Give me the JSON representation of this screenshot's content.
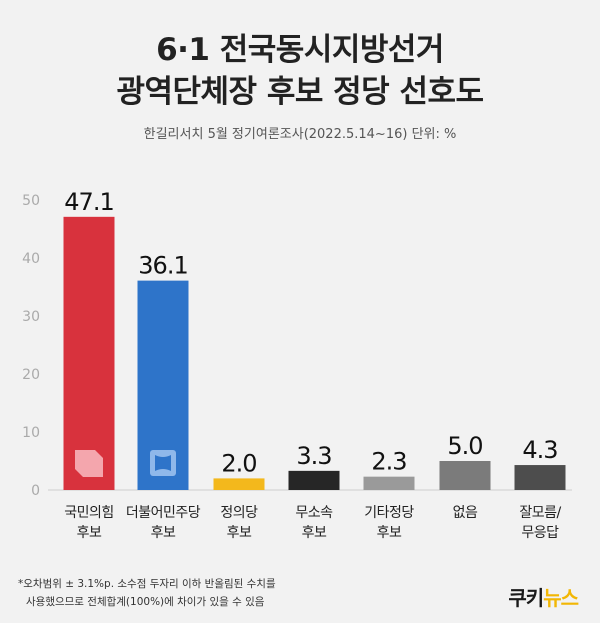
{
  "title_line1": "6·1 전국동시지방선거",
  "title_line2": "광역단체장 후보 정당 선호도",
  "subtitle": "한길리서치 5월 정기여론조사(2022.5.14~16) 단위: %",
  "footnote_line1": "*오차범위 ± 3.1%p. 소수점 두자리 이하 반올림된 수치를",
  "footnote_line2": "사용했으므로 전체합계(100%)에 차이가 있을 수 있음",
  "logo": {
    "part1": "쿠키",
    "part2": "뉴스"
  },
  "chart_data": {
    "type": "bar",
    "categories": [
      [
        "국민의힘",
        "후보"
      ],
      [
        "더불어민주당",
        "후보"
      ],
      [
        "정의당",
        "후보"
      ],
      [
        "무소속",
        "후보"
      ],
      [
        "기타정당",
        "후보"
      ],
      [
        "없음"
      ],
      [
        "잘모름/",
        "무응답"
      ]
    ],
    "values": [
      47.1,
      36.1,
      2.0,
      3.3,
      2.3,
      5.0,
      4.3
    ],
    "value_labels": [
      "47.1",
      "36.1",
      "2.0",
      "3.3",
      "2.3",
      "5.0",
      "4.3"
    ],
    "colors": [
      "#d8323d",
      "#2e74c9",
      "#f3b81c",
      "#262626",
      "#9a9a9a",
      "#7b7b7b",
      "#4d4d4d"
    ],
    "party_logos": [
      "ppp-logo",
      "democratic-logo",
      "",
      "",
      "",
      "",
      ""
    ],
    "yticks": [
      0,
      10,
      20,
      30,
      40,
      50
    ],
    "ylim": [
      0,
      50
    ],
    "grid": false
  }
}
